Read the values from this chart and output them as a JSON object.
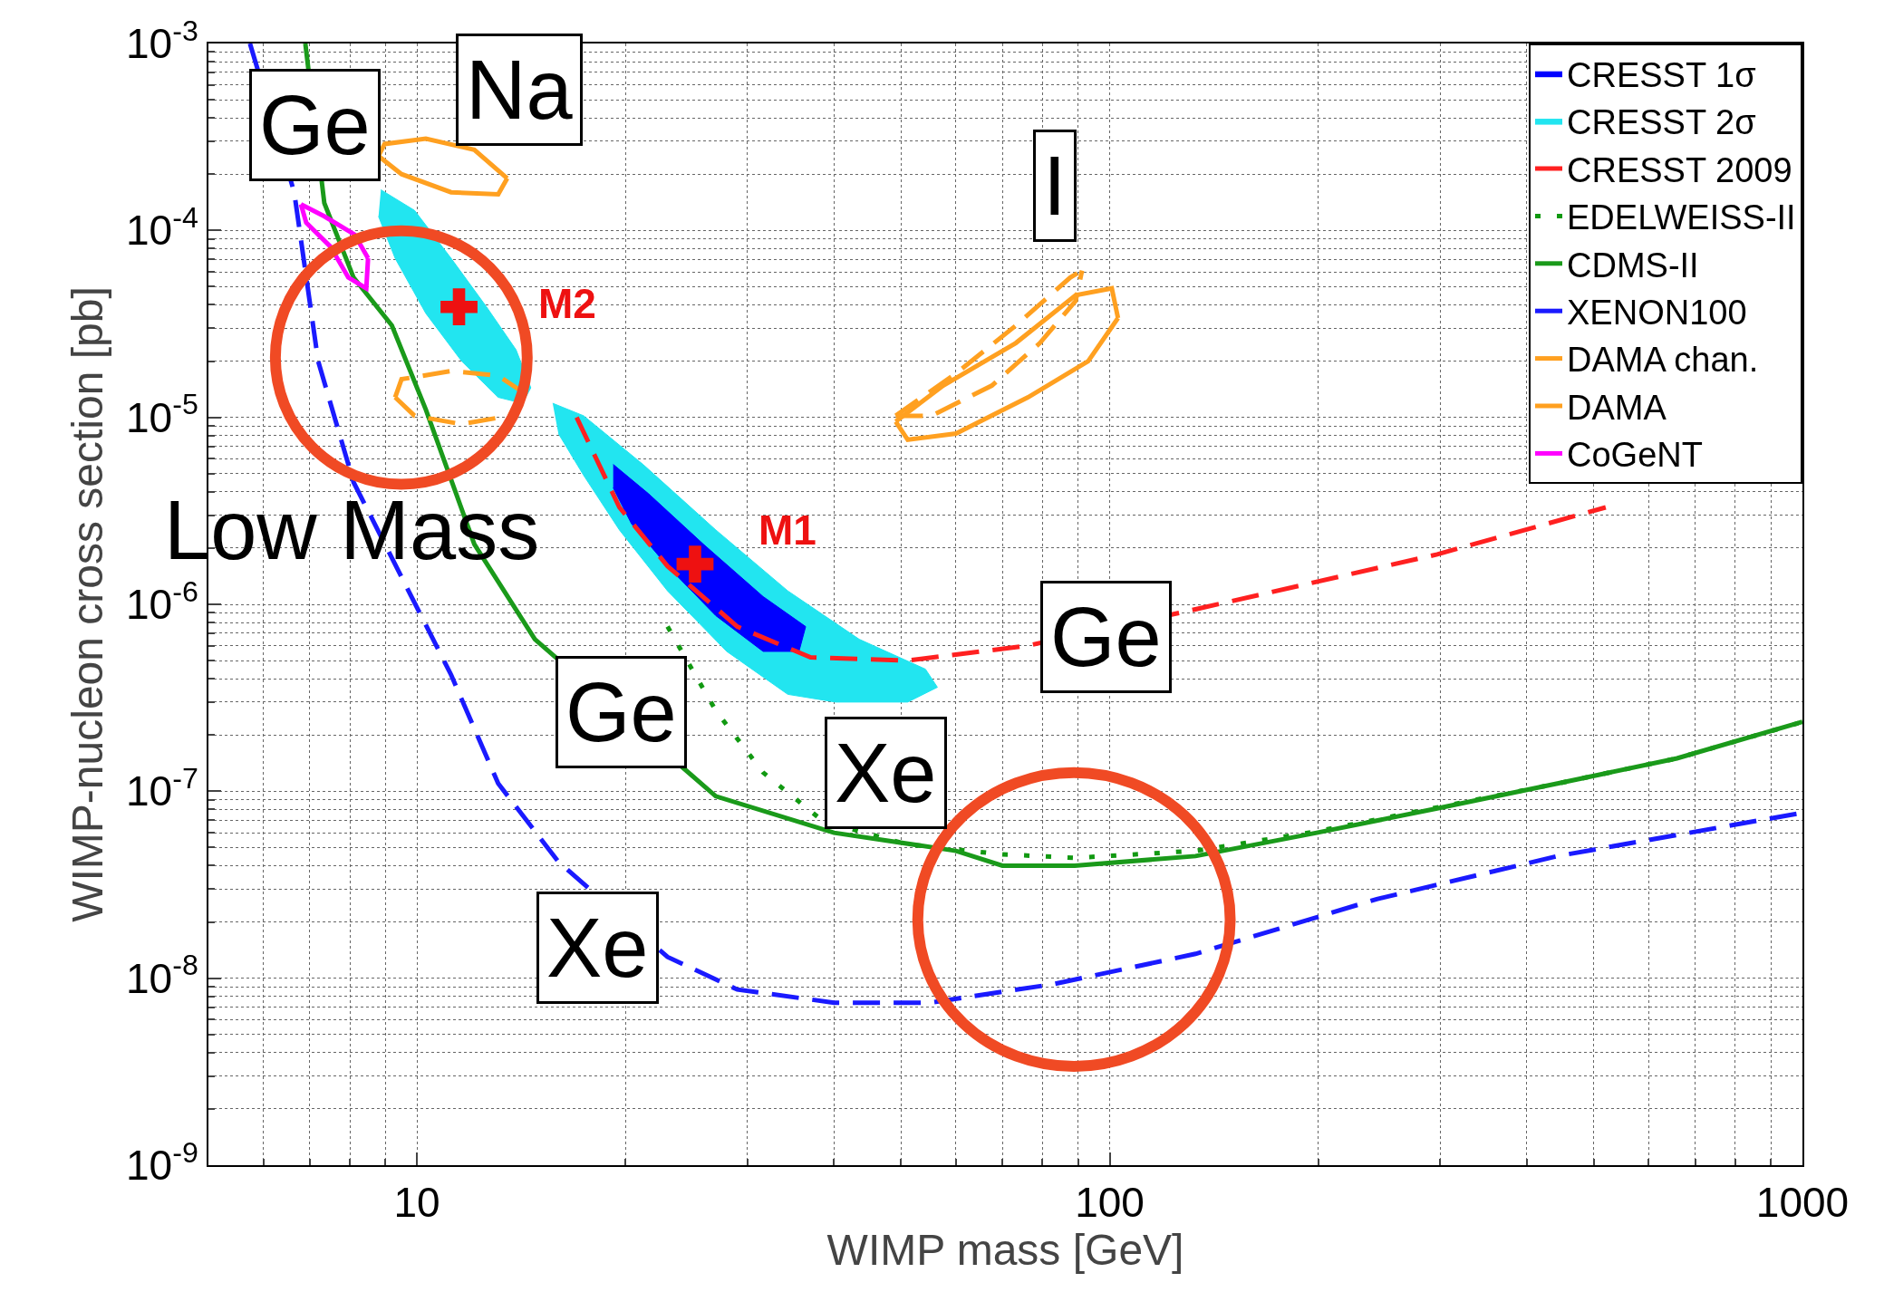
{
  "chart_data": {
    "type": "line",
    "xlabel": "WIMP mass [GeV]",
    "ylabel": "WIMP-nucleon cross section [pb]",
    "log": "xy",
    "grid": true,
    "legend": "top right",
    "xlim": [
      5,
      1000
    ],
    "xticks": [
      10,
      100,
      1000
    ],
    "ylim": [
      1e-09,
      0.001
    ],
    "yticks": [
      {
        "value": 1e-09,
        "label": "10$^{-9}$"
      },
      {
        "value": 1e-08,
        "label": "10$^{-8}$"
      },
      {
        "value": 1e-07,
        "label": "10$^{-7}$"
      },
      {
        "value": 1e-06,
        "label": "10$^{-6}$"
      },
      {
        "value": 1e-05,
        "label": "10$^{-5}$"
      },
      {
        "value": 0.0001,
        "label": "10$^{-4}$"
      },
      {
        "value": 0.001,
        "label": "10$^{-3}$"
      }
    ],
    "series": [
      {
        "name": "CRESST 1σ",
        "type": "area",
        "color": "#0000ff",
        "x": [
          19.2,
          21.6,
          25.9,
          31.6,
          36.4,
          35.6,
          31.6,
          27,
          23,
          20.4,
          19.2
        ],
        "values": [
          5.6e-06,
          3.9e-06,
          2.1e-06,
          1.1e-06,
          7.6e-07,
          5.6e-07,
          5.6e-07,
          8.7e-07,
          1.6e-06,
          2.7e-06,
          4.2e-06
        ]
      },
      {
        "name": "CRESST 2σ",
        "type": "area",
        "color": "#22e5f0",
        "x": [
          8.87,
          9.92,
          11.2,
          12.6,
          13.9,
          14.6,
          14.2,
          13.1,
          11.6,
          10.3,
          9.3,
          8.8,
          null,
          15.7,
          17.4,
          21.2,
          27,
          34.3,
          43.5,
          54.2,
          56.4,
          51.1,
          40.2,
          34.3,
          28,
          23,
          19.6,
          17.4,
          16
        ],
        "values": [
          0.000165,
          0.000128,
          7.1e-05,
          3.9e-05,
          2.3e-05,
          1.44e-05,
          1.19e-05,
          1.28e-05,
          2e-05,
          3.6e-05,
          7.1e-05,
          0.000119,
          null,
          1.19e-05,
          1.02e-05,
          5.6e-06,
          2.5e-06,
          1.18e-06,
          6.5e-07,
          4.5e-07,
          3.6e-07,
          3e-07,
          3e-07,
          3.3e-07,
          5.6e-07,
          1.18e-06,
          2.5e-06,
          4.9e-06,
          8.2e-06
        ]
      },
      {
        "name": "CRESST 2009",
        "color": "#ff2020",
        "line_style": "dashed",
        "x": [
          17,
          19.6,
          23,
          29,
          37,
          51,
          76,
          133,
          297,
          520
        ],
        "values": [
          1e-05,
          3.3e-06,
          1.6e-06,
          7.6e-07,
          5.2e-07,
          5e-07,
          6e-07,
          9.4e-07,
          1.85e-06,
          3.3e-06
        ]
      },
      {
        "name": "EDELWEISS-II",
        "color": "#119911",
        "line_style": "dashdot",
        "x": [
          23,
          27,
          31.6,
          38.6,
          51,
          70,
          89,
          133,
          199,
          297,
          443,
          659,
          1000
        ],
        "values": [
          7.6e-07,
          2.7e-07,
          1.26e-07,
          6.9e-08,
          5.2e-08,
          4.6e-08,
          4.4e-08,
          4.8e-08,
          6.1e-08,
          8.2e-08,
          1.1e-07,
          1.5e-07,
          2.35e-07
        ]
      },
      {
        "name": "CDMS-II",
        "color": "#1a9a1a",
        "line_style": "solid",
        "x": [
          6.9,
          7.35,
          8.1,
          9.2,
          10.3,
          12.1,
          14.8,
          27,
          40,
          60,
          70,
          89,
          133,
          199,
          297,
          443,
          659,
          1000
        ],
        "values": [
          0.001,
          0.00014,
          5.6e-05,
          3.1e-05,
          1.1e-05,
          2.1e-06,
          6.5e-07,
          9.4e-08,
          6e-08,
          4.8e-08,
          4e-08,
          4e-08,
          4.5e-08,
          6e-08,
          8.1e-08,
          1.1e-07,
          1.5e-07,
          2.35e-07
        ]
      },
      {
        "name": "XENON100",
        "color": "#1a1aff",
        "line_style": "dashed",
        "x": [
          5.74,
          6.65,
          7.2,
          8.1,
          9.5,
          11.2,
          13.1,
          16,
          23,
          29,
          40,
          55,
          83,
          133,
          243,
          443,
          985
        ],
        "values": [
          0.001,
          0.00016,
          2e-05,
          4.5e-06,
          1.4e-06,
          4.2e-07,
          1.1e-07,
          4.2e-08,
          1.3e-08,
          8.7e-09,
          7.4e-09,
          7.4e-09,
          9.3e-09,
          1.35e-08,
          2.65e-08,
          4.5e-08,
          7.6e-08
        ]
      },
      {
        "name": "DAMA chan.",
        "color": "#ffa020",
        "line_style": "dashed",
        "x": [
          9.3,
          9.5,
          11.2,
          13.1,
          14.2,
          null,
          49.1,
          60,
          73.2,
          87.7,
          91.2
        ],
        "values": [
          1.28e-05,
          1.6e-05,
          1.77e-05,
          1.67e-05,
          1.37e-05,
          null,
          1.02e-05,
          1.72e-05,
          3.1e-05,
          5.6e-05,
          6.1e-05
        ]
      },
      {
        "name": "DAMA",
        "color": "#ffa020",
        "line_style": "solid",
        "x": [
          8.8,
          8.98,
          10.3,
          12.1,
          13.5,
          null,
          49.1,
          57.5,
          73.2,
          89.3,
          100.7,
          102.8
        ],
        "values": [
          0.00025,
          0.00029,
          0.00031,
          0.00027,
          0.00019,
          null,
          9.5e-06,
          1.48e-05,
          2.5e-05,
          4.5e-05,
          4.9e-05,
          3.4e-05
        ]
      },
      {
        "name": "CoGeNT",
        "color": "#ff00ff",
        "line_style": "solid",
        "x": [
          6.8,
          7.35,
          8.13,
          8.5
        ],
        "values": [
          0.000138,
          0.000119,
          9.5e-05,
          7.1e-05
        ]
      },
      {
        "color": "#ffa020",
        "line_style": "dashed",
        "x": [
          9.3,
          9.92,
          11.6,
          13.6,
          14.2,
          null,
          49.1,
          55.3,
          67.6,
          79.3,
          89.3,
          91.2
        ],
        "values": [
          1.28e-05,
          1.02e-05,
          9.2e-06,
          1.02e-05,
          1.37e-05,
          null,
          1.02e-05,
          1.02e-05,
          1.48e-05,
          2.5e-05,
          4.2e-05,
          6.1e-05
        ]
      },
      {
        "color": "#ffa020",
        "line_style": "solid",
        "x": [
          8.8,
          9.5,
          11.2,
          13.1,
          13.5,
          null,
          49.1,
          51.1,
          60,
          76.2,
          93.1,
          102.8
        ],
        "values": [
          0.00025,
          0.0002,
          0.00016,
          0.000156,
          0.00019,
          null,
          9.5e-06,
          7.6e-06,
          8.2e-06,
          1.28e-05,
          2e-05,
          3.4e-05
        ]
      },
      {
        "color": "#ff00ff",
        "line_style": "solid",
        "x": [
          6.8,
          6.92,
          7.5,
          7.96,
          8.45,
          8.5
        ],
        "values": [
          0.000138,
          0.00011,
          8.2e-05,
          5.6e-05,
          4.9e-05,
          7.1e-05
        ]
      },
      {
        "type": "scatter",
        "marker": "cross",
        "color": "#ee1111",
        "x": [
          25.2,
          11.5
        ],
        "values": [
          1.64e-06,
          3.9e-05
        ]
      }
    ],
    "annotations": [
      "Ge",
      "Na",
      "I",
      "Low Mass",
      "Ge",
      "Ge",
      "Xe",
      "Xe",
      "M1",
      "M2"
    ]
  }
}
